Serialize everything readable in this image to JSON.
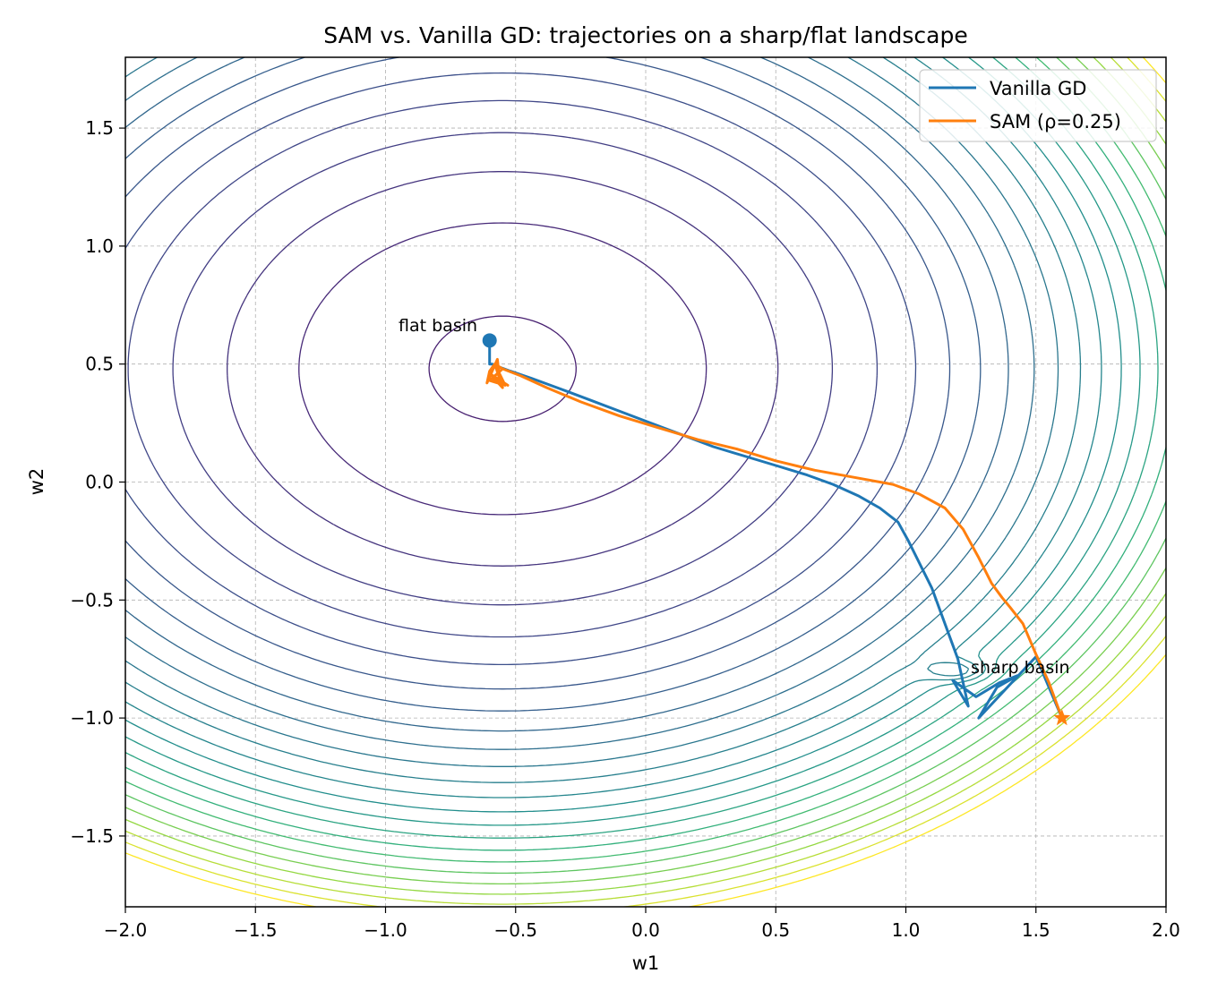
{
  "chart_data": {
    "type": "line",
    "title": "SAM vs. Vanilla GD: trajectories on a sharp/flat landscape",
    "xlabel": "w1",
    "ylabel": "w2",
    "xlim": [
      -2.0,
      2.0
    ],
    "ylim": [
      -1.8,
      1.8
    ],
    "xticks": [
      -2.0,
      -1.5,
      -1.0,
      -0.5,
      0.0,
      0.5,
      1.0,
      1.5,
      2.0
    ],
    "xtick_labels": [
      "−2.0",
      "−1.5",
      "−1.0",
      "−0.5",
      "0.0",
      "0.5",
      "1.0",
      "1.5",
      "2.0"
    ],
    "yticks": [
      -1.5,
      -1.0,
      -0.5,
      0.0,
      0.5,
      1.0,
      1.5
    ],
    "ytick_labels": [
      "−1.5",
      "−1.0",
      "−0.5",
      "0.0",
      "0.5",
      "1.0",
      "1.5"
    ],
    "grid": true,
    "legend_position": "upper right",
    "series": [
      {
        "name": "Vanilla GD",
        "color": "#1f77b4",
        "x": [
          1.6,
          1.5,
          1.28,
          1.35,
          1.43,
          1.36,
          1.33,
          1.27,
          1.18,
          1.24,
          1.2,
          1.15,
          1.1,
          1.01,
          0.97,
          0.9,
          0.82,
          0.72,
          0.62,
          0.5,
          0.38,
          0.26,
          0.14,
          0.02,
          -0.1,
          -0.22,
          -0.34,
          -0.44,
          -0.52,
          -0.57,
          -0.59,
          -0.6,
          -0.6
        ],
        "y": [
          -1.0,
          -0.74,
          -1.0,
          -0.87,
          -0.82,
          -0.85,
          -0.87,
          -0.91,
          -0.84,
          -0.95,
          -0.75,
          -0.6,
          -0.45,
          -0.25,
          -0.17,
          -0.11,
          -0.06,
          -0.01,
          0.03,
          0.07,
          0.11,
          0.15,
          0.2,
          0.25,
          0.3,
          0.35,
          0.4,
          0.44,
          0.47,
          0.49,
          0.5,
          0.5,
          0.6
        ]
      },
      {
        "name": "SAM (ρ=0.25)",
        "color": "#ff7f0e",
        "x": [
          1.6,
          1.55,
          1.5,
          1.45,
          1.4,
          1.37,
          1.33,
          1.28,
          1.22,
          1.15,
          1.05,
          0.95,
          0.8,
          0.65,
          0.5,
          0.35,
          0.2,
          0.05,
          -0.1,
          -0.25,
          -0.38,
          -0.48,
          -0.55,
          -0.58,
          -0.6,
          -0.61,
          -0.57,
          -0.56,
          -0.59,
          -0.55,
          -0.6,
          -0.54,
          -0.58,
          -0.55,
          -0.6,
          -0.53
        ],
        "y": [
          -1.0,
          -0.85,
          -0.73,
          -0.6,
          -0.53,
          -0.49,
          -0.43,
          -0.32,
          -0.2,
          -0.11,
          -0.05,
          -0.01,
          0.02,
          0.05,
          0.09,
          0.14,
          0.18,
          0.23,
          0.28,
          0.34,
          0.4,
          0.45,
          0.48,
          0.5,
          0.47,
          0.42,
          0.52,
          0.42,
          0.44,
          0.48,
          0.43,
          0.41,
          0.5,
          0.4,
          0.46,
          0.41
        ]
      }
    ],
    "markers": [
      {
        "name": "flat-basin-point",
        "x": -0.6,
        "y": 0.6,
        "color": "#1f77b4",
        "shape": "circle"
      },
      {
        "name": "sam-start-star",
        "x": 1.6,
        "y": -1.0,
        "color": "#ff7f0e",
        "shape": "star"
      }
    ],
    "annotations": [
      {
        "text": "flat basin",
        "x": -0.95,
        "y": 0.64
      },
      {
        "text": "sharp basin",
        "x": 1.25,
        "y": -0.81
      }
    ],
    "contour": {
      "colormap": "viridis",
      "basins": [
        {
          "label": "flat basin",
          "x": -0.55,
          "y": 0.48,
          "kind": "flat"
        },
        {
          "label": "sharp basin",
          "x": 1.2,
          "y": -0.8,
          "kind": "sharp"
        }
      ]
    }
  }
}
